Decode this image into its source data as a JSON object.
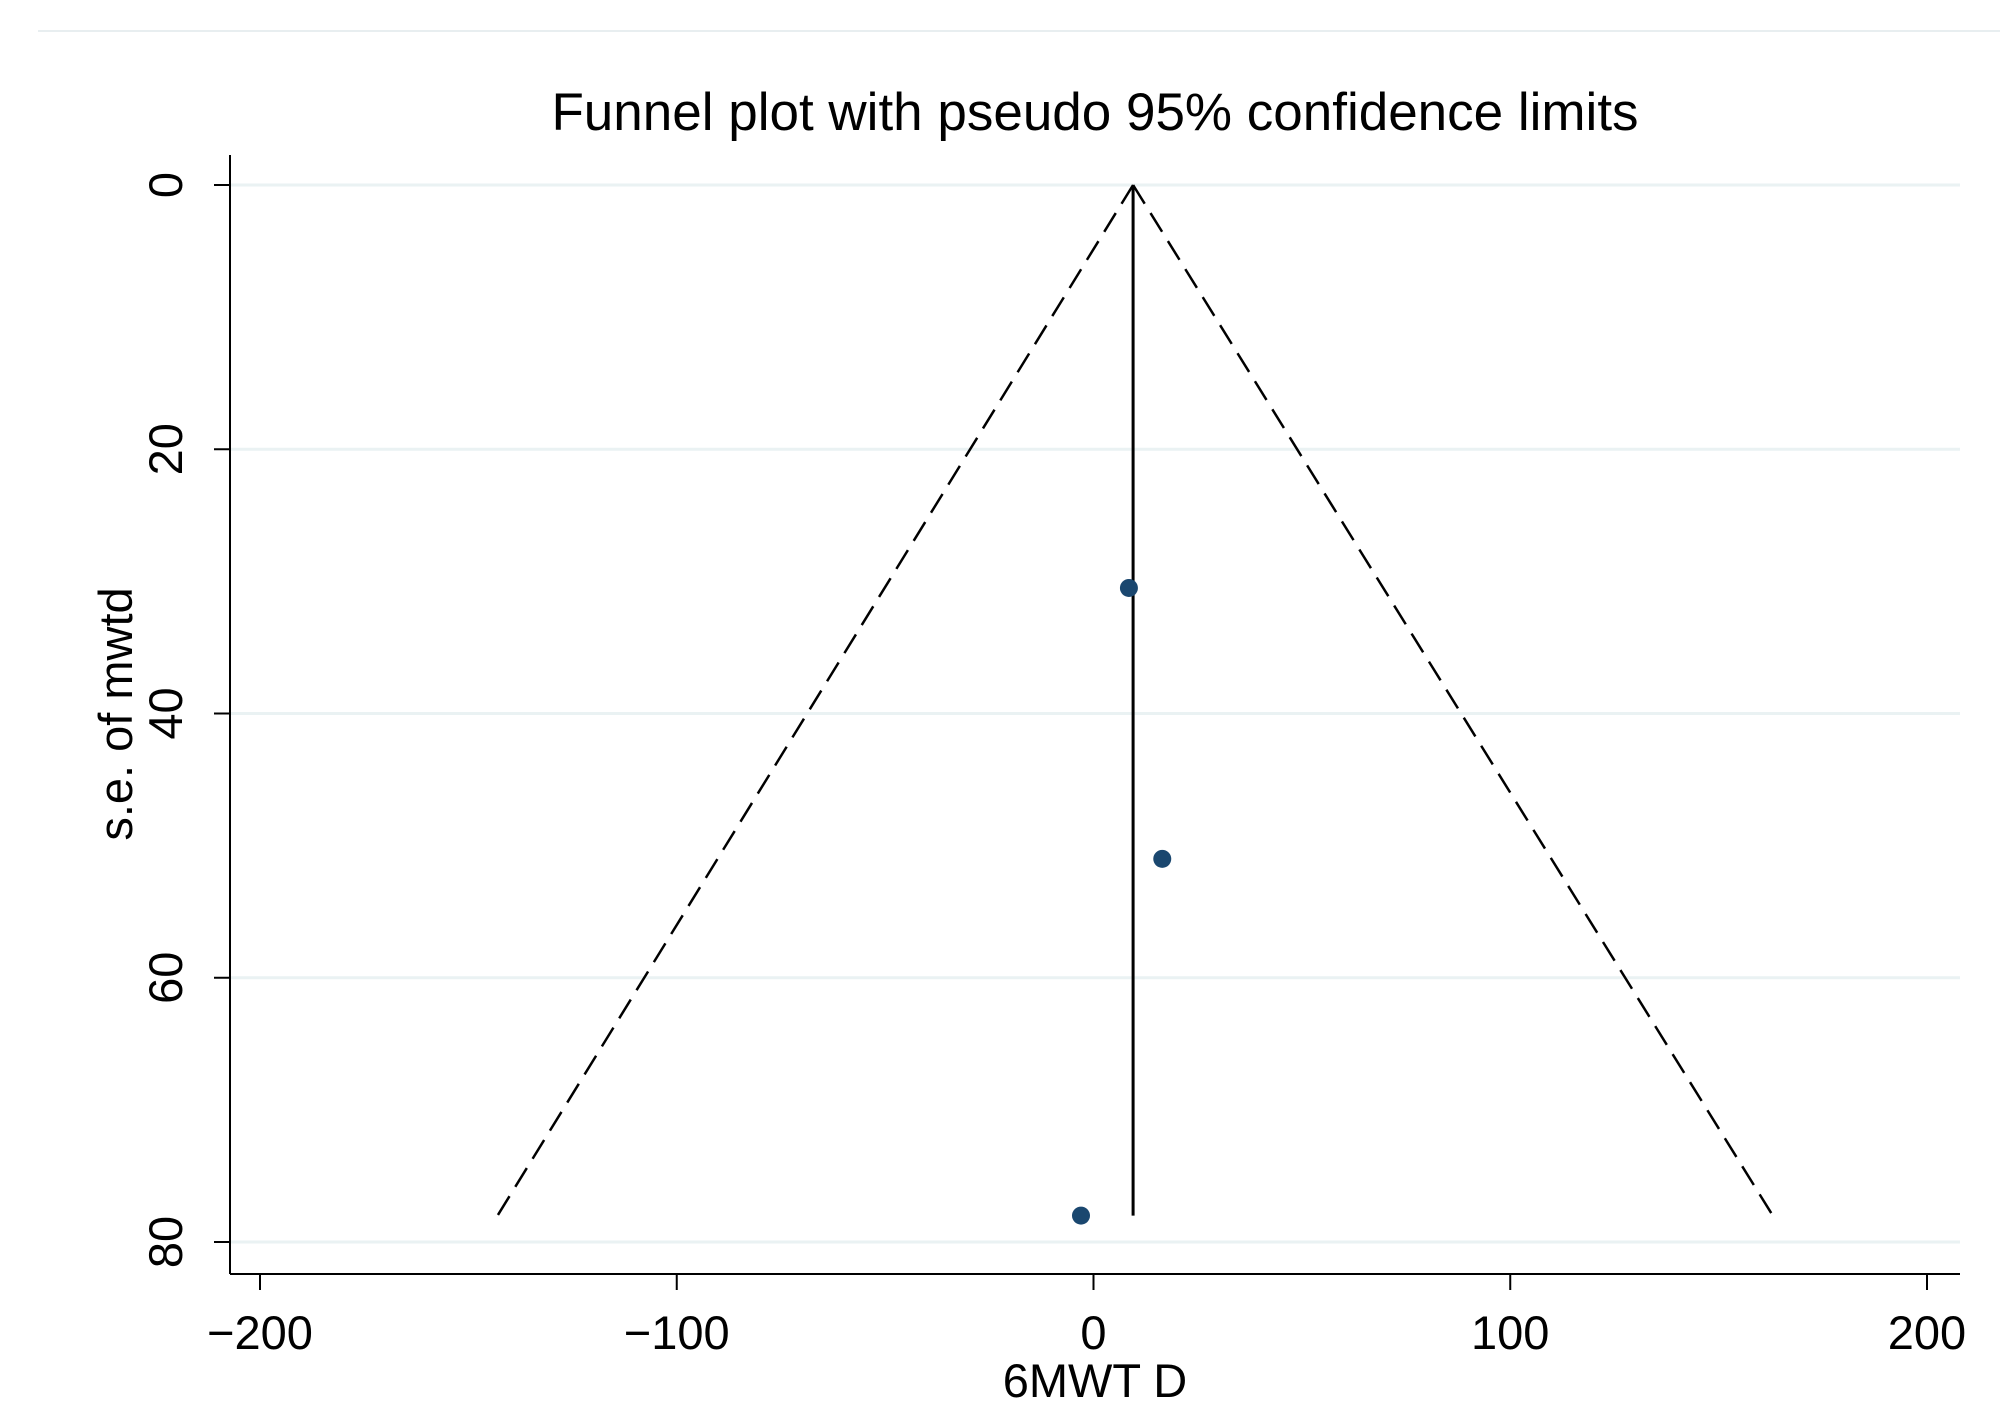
{
  "chart_data": {
    "type": "scatter",
    "title": "Funnel plot with pseudo 95% confidence limits",
    "xlabel": "6MWT D",
    "ylabel": "s.e. of mwtd",
    "xlim": [
      -200,
      200
    ],
    "ylim": [
      0,
      80
    ],
    "y_reversed": true,
    "xticks": [
      -200,
      -100,
      0,
      100,
      200
    ],
    "yticks": [
      0,
      20,
      40,
      60,
      80
    ],
    "xtick_labels": [
      "−200",
      "−100",
      "0",
      "100",
      "200"
    ],
    "ytick_labels": [
      "0",
      "20",
      "40",
      "60",
      "80"
    ],
    "grid": true,
    "pooled_estimate": 9.5,
    "pooled_line_se_range": [
      0,
      78
    ],
    "confidence_limits": {
      "level": "95%",
      "se_max": 78,
      "lower": [
        {
          "x": 9.5,
          "y": 0
        },
        {
          "x": -143,
          "y": 78
        }
      ],
      "upper": [
        {
          "x": 9.5,
          "y": 0
        },
        {
          "x": 163,
          "y": 78
        }
      ]
    },
    "points": [
      {
        "x": 8.5,
        "y": 30.5
      },
      {
        "x": 16.5,
        "y": 51
      },
      {
        "x": -3,
        "y": 78
      }
    ],
    "colors": {
      "points": "#1a476f",
      "grid": "#eaf2f3",
      "axes": "#000000",
      "separator": "#e8eef0"
    }
  }
}
